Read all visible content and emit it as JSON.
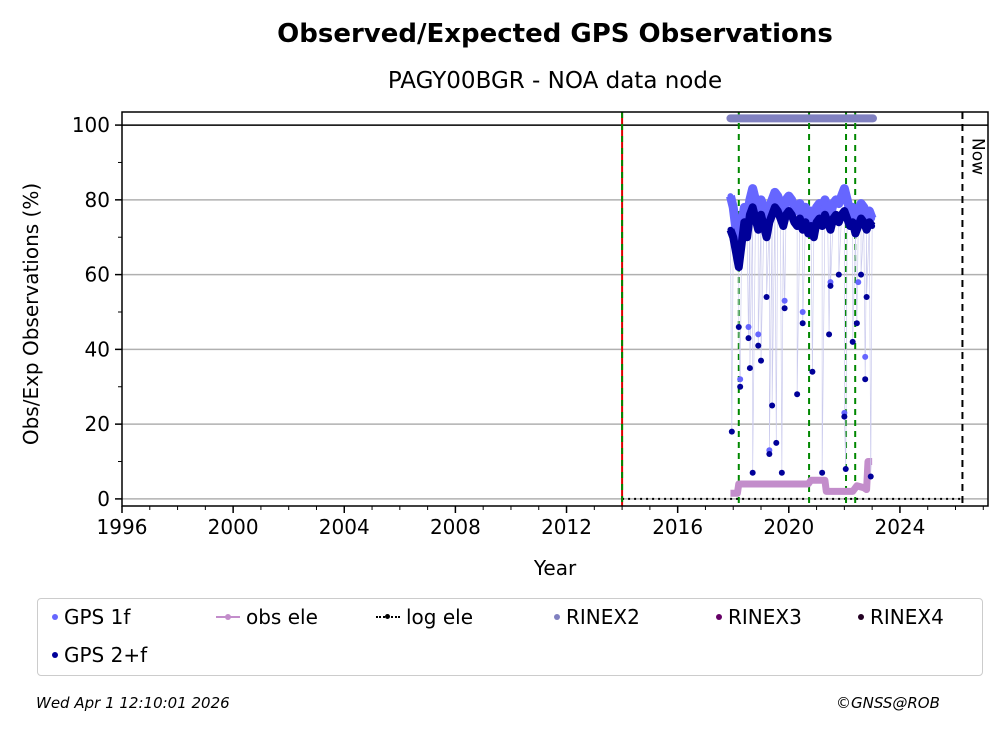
{
  "chart_data": {
    "type": "scatter",
    "title": "Observed/Expected GPS Observations",
    "subtitle": "PAGY00BGR - NOA data node",
    "xlabel": "Year",
    "ylabel": "Obs/Exp Observations (%)",
    "xlim": [
      1996,
      2027.17
    ],
    "ylim": [
      -1.9,
      103.5
    ],
    "xticks": [
      1996,
      2000,
      2004,
      2008,
      2012,
      2016,
      2020,
      2024
    ],
    "yticks": [
      0,
      20,
      40,
      60,
      80,
      100
    ],
    "grid": "horizontal",
    "now_label": "Now",
    "now_year": 2026.25,
    "red_line_year": 2014.0,
    "green_lines": [
      2018.2,
      2020.73,
      2022.06,
      2022.39
    ],
    "rinex2_span": [
      2017.9,
      2023.03
    ],
    "rinex2_value": 101.8,
    "log_ele": {
      "span": [
        2014.0,
        2026.2
      ],
      "value": 0
    },
    "obs_ele": [
      [
        2017.9,
        1.5
      ],
      [
        2018.15,
        1.5
      ],
      [
        2018.2,
        4
      ],
      [
        2020.7,
        4
      ],
      [
        2020.8,
        5
      ],
      [
        2021.3,
        5
      ],
      [
        2021.35,
        2
      ],
      [
        2022.3,
        2
      ],
      [
        2022.45,
        3.5
      ],
      [
        2022.7,
        3
      ],
      [
        2022.8,
        2.5
      ],
      [
        2022.85,
        10
      ],
      [
        2023.0,
        10
      ]
    ],
    "x": [
      2017.9,
      2018.0,
      2018.1,
      2018.2,
      2018.3,
      2018.4,
      2018.5,
      2018.6,
      2018.7,
      2018.8,
      2018.9,
      2019.0,
      2019.1,
      2019.2,
      2019.3,
      2019.4,
      2019.5,
      2019.6,
      2019.7,
      2019.8,
      2019.9,
      2020.0,
      2020.1,
      2020.2,
      2020.3,
      2020.4,
      2020.5,
      2020.6,
      2020.7,
      2020.8,
      2020.9,
      2021.0,
      2021.1,
      2021.2,
      2021.3,
      2021.4,
      2021.5,
      2021.6,
      2021.7,
      2021.8,
      2021.9,
      2022.0,
      2022.1,
      2022.2,
      2022.3,
      2022.4,
      2022.5,
      2022.6,
      2022.7,
      2022.8,
      2022.9,
      2023.0
    ],
    "gps1f": [
      81,
      78,
      72,
      68,
      73,
      78,
      75,
      80,
      83,
      80,
      77,
      80,
      78,
      75,
      78,
      80,
      82,
      81,
      79,
      77,
      80,
      81,
      80,
      78,
      77,
      79,
      76,
      78,
      75,
      77,
      74,
      78,
      79,
      77,
      80,
      78,
      76,
      79,
      80,
      79,
      81,
      83,
      80,
      77,
      78,
      75,
      77,
      79,
      78,
      76,
      77,
      75
    ],
    "gps2f": [
      72,
      70,
      66,
      62,
      68,
      74,
      70,
      76,
      78,
      75,
      72,
      76,
      73,
      70,
      74,
      76,
      78,
      77,
      75,
      73,
      76,
      77,
      76,
      74,
      73,
      75,
      72,
      74,
      71,
      73,
      70,
      74,
      75,
      73,
      76,
      74,
      72,
      75,
      76,
      74,
      76,
      77,
      75,
      73,
      74,
      71,
      73,
      75,
      74,
      72,
      74,
      73
    ],
    "gps2f_outliers": [
      [
        2017.95,
        18
      ],
      [
        2018.2,
        46
      ],
      [
        2018.25,
        30
      ],
      [
        2018.55,
        43
      ],
      [
        2018.6,
        35
      ],
      [
        2018.7,
        7
      ],
      [
        2018.9,
        41
      ],
      [
        2019.0,
        37
      ],
      [
        2019.2,
        54
      ],
      [
        2019.3,
        12
      ],
      [
        2019.4,
        25
      ],
      [
        2019.55,
        15
      ],
      [
        2019.75,
        7
      ],
      [
        2019.85,
        51
      ],
      [
        2020.3,
        28
      ],
      [
        2020.5,
        47
      ],
      [
        2020.85,
        34
      ],
      [
        2021.2,
        7
      ],
      [
        2021.45,
        44
      ],
      [
        2021.5,
        57
      ],
      [
        2022.0,
        22
      ],
      [
        2022.05,
        8
      ],
      [
        2022.3,
        42
      ],
      [
        2022.45,
        47
      ],
      [
        2022.75,
        32
      ],
      [
        2022.8,
        54
      ],
      [
        2022.95,
        6
      ],
      [
        2022.6,
        60
      ],
      [
        2021.8,
        60
      ]
    ],
    "gps1f_outliers": [
      [
        2018.25,
        32
      ],
      [
        2018.55,
        46
      ],
      [
        2018.9,
        44
      ],
      [
        2019.3,
        13
      ],
      [
        2019.85,
        53
      ],
      [
        2020.5,
        50
      ],
      [
        2021.5,
        58
      ],
      [
        2022.0,
        23
      ],
      [
        2022.75,
        38
      ],
      [
        2022.5,
        58
      ]
    ],
    "legend": [
      {
        "label": "GPS 1f",
        "color": "#6666ff",
        "kind": "dot"
      },
      {
        "label": "obs ele",
        "color": "#c38dcb",
        "kind": "line"
      },
      {
        "label": "log ele",
        "color": "#000000",
        "kind": "dotted"
      },
      {
        "label": "RINEX2",
        "color": "#8080c0",
        "kind": "dot"
      },
      {
        "label": "RINEX3",
        "color": "#660066",
        "kind": "dot"
      },
      {
        "label": "RINEX4",
        "color": "#220022",
        "kind": "dot"
      },
      {
        "label": "GPS 2+f",
        "color": "#000099",
        "kind": "dot"
      }
    ]
  },
  "footer": {
    "date": "Wed Apr  1 12:10:01 2026",
    "credit": "©GNSS@ROB"
  }
}
